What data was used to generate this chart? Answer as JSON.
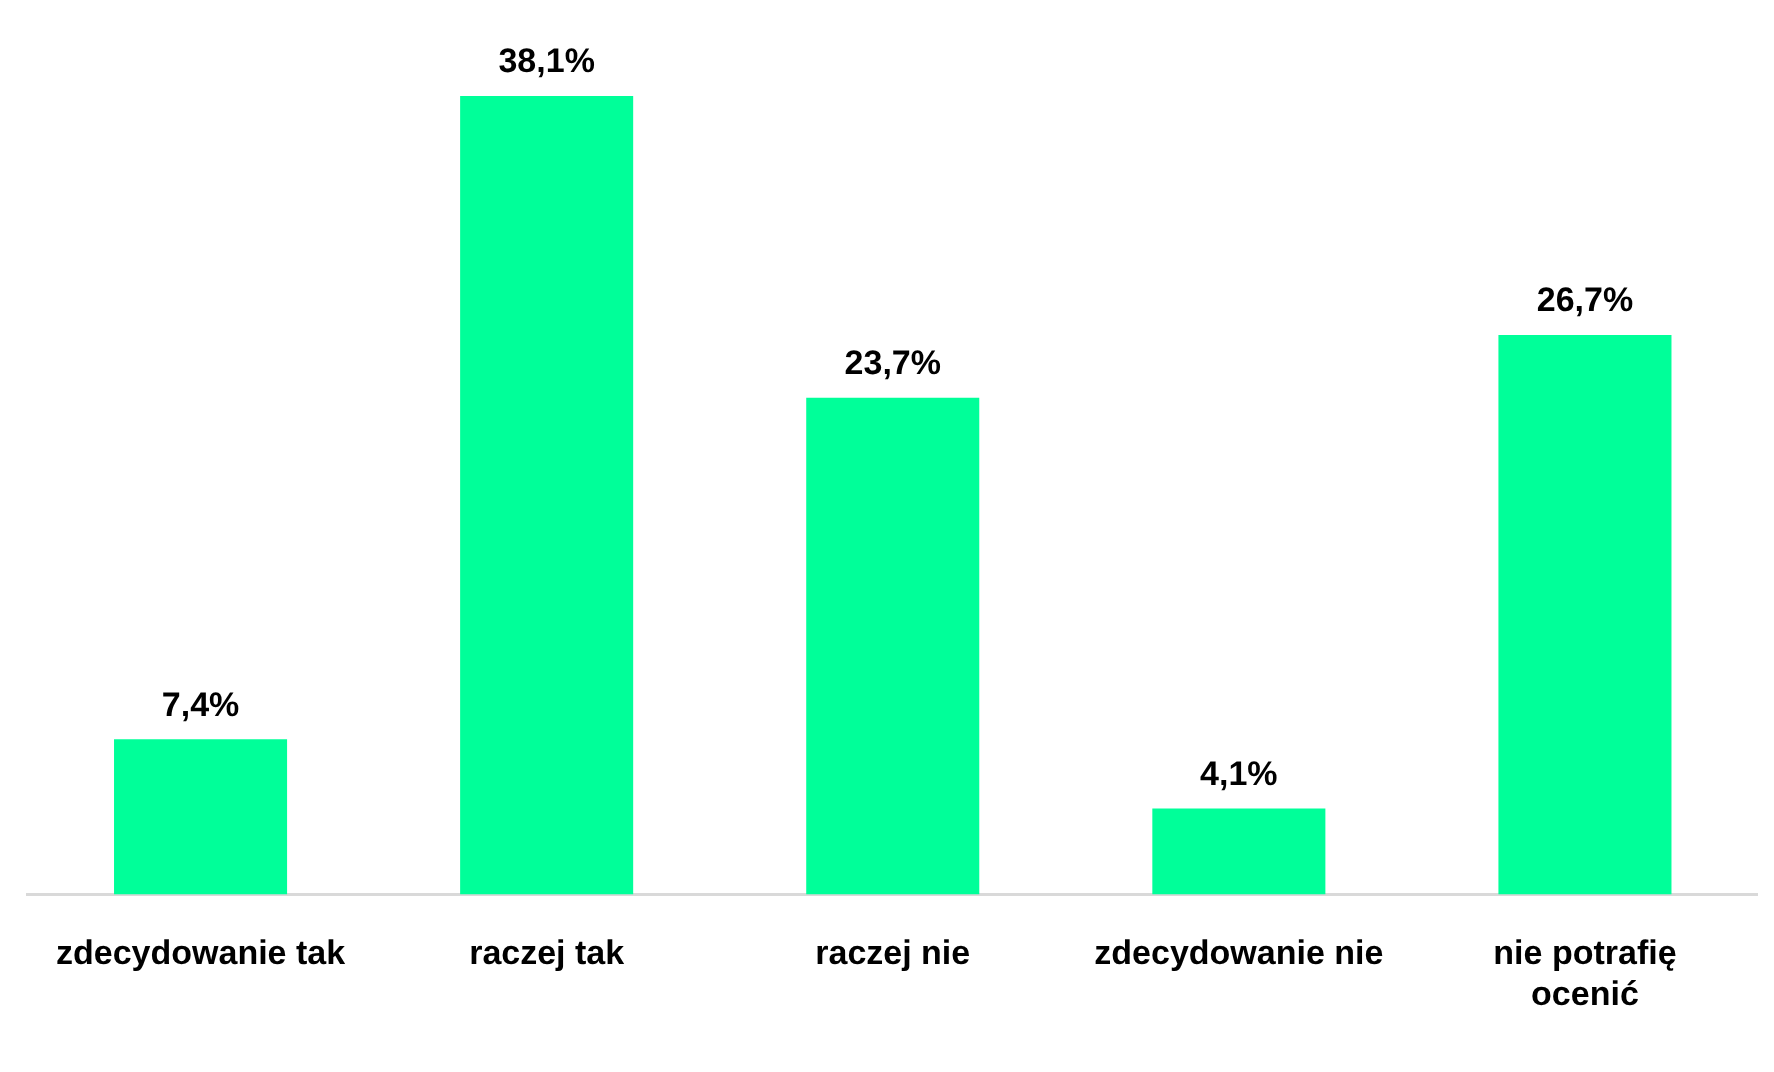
{
  "chart_data": {
    "type": "bar",
    "categories": [
      "zdecydowanie tak",
      "raczej tak",
      "raczej nie",
      "zdecydowanie nie",
      "nie potrafię ocenić"
    ],
    "values": [
      7.4,
      38.1,
      23.7,
      4.1,
      26.7
    ],
    "value_labels": [
      "7,4%",
      "38,1%",
      "23,7%",
      "4,1%",
      "26,7%"
    ],
    "color": "#00ff99",
    "grid": false,
    "legend": false
  }
}
